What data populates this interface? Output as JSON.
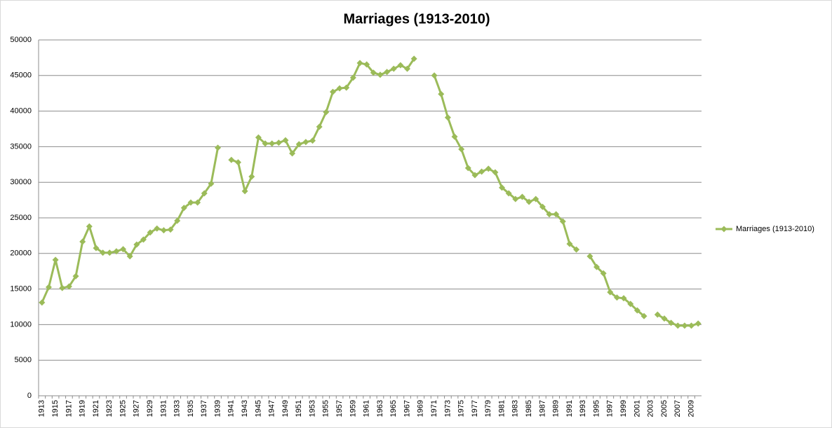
{
  "chart_data": {
    "type": "line",
    "title": "Marriages (1913-2010)",
    "categories": [
      "1913",
      null,
      "1915",
      null,
      "1917",
      null,
      "1919",
      null,
      "1921",
      null,
      "1923",
      null,
      "1925",
      null,
      "1927",
      null,
      "1929",
      null,
      "1931",
      null,
      "1933",
      null,
      "1935",
      null,
      "1937",
      null,
      "1939",
      null,
      "1941",
      null,
      "1943",
      null,
      "1945",
      null,
      "1947",
      null,
      "1949",
      null,
      "1951",
      null,
      "1953",
      null,
      "1955",
      null,
      "1957",
      null,
      "1959",
      null,
      "1961",
      null,
      "1963",
      null,
      "1965",
      null,
      "1967",
      null,
      "1969",
      null,
      "1971",
      null,
      "1973",
      null,
      "1975",
      null,
      "1977",
      null,
      "1979",
      null,
      "1981",
      null,
      "1983",
      null,
      "1985",
      null,
      "1987",
      null,
      "1989",
      null,
      "1991",
      null,
      "1993",
      null,
      "1995",
      null,
      "1997",
      null,
      "1999",
      null,
      "2001",
      null,
      "2003",
      null,
      "2005",
      null,
      "2007",
      null,
      "2009",
      null
    ],
    "series": [
      {
        "name": "Marriages (1913-2010)",
        "color": "#9bbb59",
        "values": [
          13100,
          15250,
          19100,
          15150,
          15350,
          16800,
          21650,
          23800,
          20750,
          20100,
          20100,
          20300,
          20600,
          19600,
          21250,
          21950,
          22950,
          23500,
          23250,
          23350,
          24600,
          26400,
          27150,
          27150,
          28450,
          29800,
          34850,
          null,
          33150,
          32800,
          28750,
          30800,
          36300,
          35450,
          35450,
          35550,
          35900,
          34050,
          35350,
          35650,
          35850,
          37800,
          39850,
          42700,
          43200,
          43300,
          44700,
          46750,
          46550,
          45400,
          45100,
          45500,
          45950,
          46450,
          45950,
          47350,
          null,
          null,
          45000,
          42400,
          39100,
          36400,
          34650,
          32000,
          31000,
          31500,
          31900,
          31400,
          29250,
          28450,
          27650,
          27950,
          27250,
          27650,
          26550,
          25500,
          25500,
          24500,
          21350,
          20550,
          null,
          19600,
          18100,
          17200,
          14550,
          13800,
          13700,
          12900,
          12000,
          11200,
          null,
          11400,
          10850,
          10250,
          9850,
          9850,
          9850,
          10150
        ]
      }
    ],
    "ylim": [
      0,
      50000
    ],
    "yticks": [
      0,
      5000,
      10000,
      15000,
      20000,
      25000,
      30000,
      35000,
      40000,
      45000,
      50000
    ],
    "grid": true,
    "legend": "right"
  }
}
